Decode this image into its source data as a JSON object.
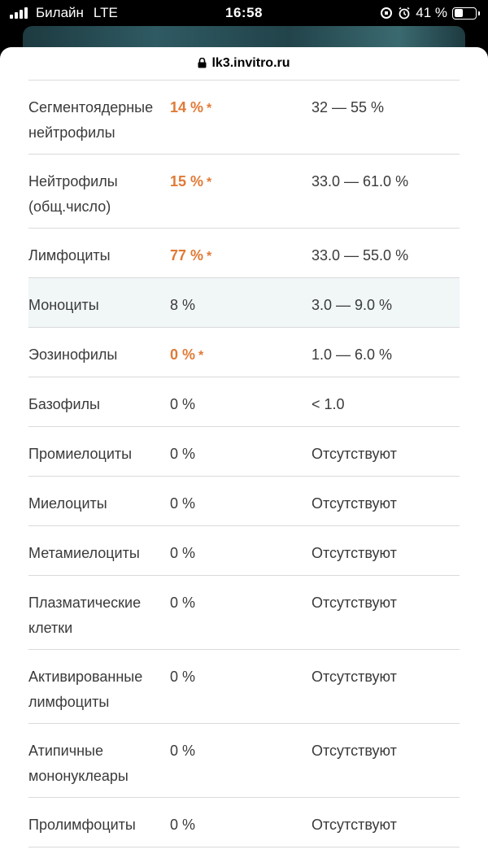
{
  "status_bar": {
    "carrier": "Билайн",
    "network": "LTE",
    "time": "16:58",
    "battery": "41 %"
  },
  "browser": {
    "url": "lk3.invitro.ru"
  },
  "colors": {
    "abnormal": "#e07a37",
    "highlight_row": "#f1f6f7"
  },
  "rows": [
    {
      "name": "Сегментоядерные нейтрофилы",
      "value": "14 %",
      "flag": "*",
      "abnormal": true,
      "ref": "32 — 55 %"
    },
    {
      "name": "Нейтрофилы (общ.число)",
      "value": "15 %",
      "flag": "*",
      "abnormal": true,
      "ref": "33.0 — 61.0 %"
    },
    {
      "name": "Лимфоциты",
      "value": "77 %",
      "flag": "*",
      "abnormal": true,
      "ref": "33.0 — 55.0 %"
    },
    {
      "name": "Моноциты",
      "value": "8 %",
      "flag": "",
      "abnormal": false,
      "ref": "3.0 — 9.0 %",
      "highlight": true
    },
    {
      "name": "Эозинофилы",
      "value": "0 %",
      "flag": "*",
      "abnormal": true,
      "ref": "1.0 — 6.0 %"
    },
    {
      "name": "Базофилы",
      "value": "0 %",
      "flag": "",
      "abnormal": false,
      "ref": "< 1.0"
    },
    {
      "name": "Промиелоциты",
      "value": "0 %",
      "flag": "",
      "abnormal": false,
      "ref": "Отсутствуют"
    },
    {
      "name": "Миелоциты",
      "value": "0 %",
      "flag": "",
      "abnormal": false,
      "ref": "Отсутствуют"
    },
    {
      "name": "Метамиелоциты",
      "value": "0 %",
      "flag": "",
      "abnormal": false,
      "ref": "Отсутствуют"
    },
    {
      "name": "Плазматические клетки",
      "value": "0 %",
      "flag": "",
      "abnormal": false,
      "ref": "Отсутствуют"
    },
    {
      "name": "Активированные лимфоциты",
      "value": "0 %",
      "flag": "",
      "abnormal": false,
      "ref": "Отсутствуют"
    },
    {
      "name": "Атипичные мононуклеары",
      "value": "0 %",
      "flag": "",
      "abnormal": false,
      "ref": "Отсутствуют"
    },
    {
      "name": "Пролимфоциты",
      "value": "0 %",
      "flag": "",
      "abnormal": false,
      "ref": "Отсутствуют"
    }
  ]
}
